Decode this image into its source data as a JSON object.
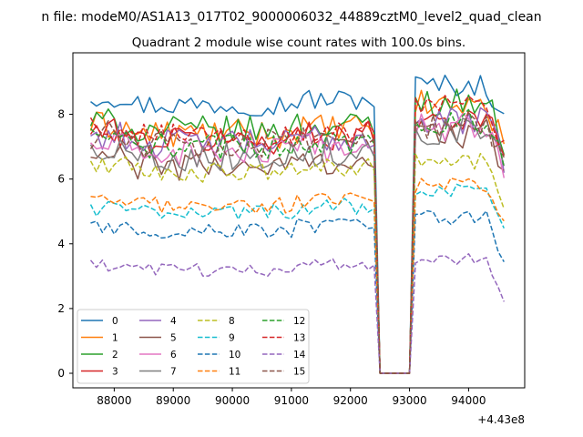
{
  "suptitle": "n file: modeM0/AS1A13_017T02_9000006032_44889cztM0_level2_quad_clean",
  "chart_data": {
    "type": "line",
    "title": "Quadrant 2 module wise count rates with 100.0s bins.",
    "xlabel": "",
    "ylabel": "",
    "x_offset_label": "+4.43e8",
    "x_range": [
      87300,
      94950
    ],
    "ylim": [
      -0.45,
      9.9
    ],
    "x_ticks": [
      88000,
      89000,
      90000,
      91000,
      92000,
      93000,
      94000
    ],
    "x_tick_labels": [
      "88000",
      "89000",
      "90000",
      "91000",
      "92000",
      "93000",
      "94000"
    ],
    "y_ticks": [
      0,
      2,
      4,
      6,
      8
    ],
    "y_tick_labels": [
      "0",
      "2",
      "4",
      "6",
      "8"
    ],
    "grid": false,
    "legend": "lower-left, 4 columns",
    "x_start": 87600,
    "x_step": 100,
    "gap_start": 92400,
    "gap_end": 93000,
    "series": [
      {
        "name": "0",
        "color": "#1f77b4",
        "dash": "solid",
        "base_first": 8.3,
        "base_second": 8.9,
        "noise": 0.35
      },
      {
        "name": "1",
        "color": "#ff7f0e",
        "dash": "solid",
        "base_first": 7.4,
        "base_second": 8.3,
        "noise": 0.45
      },
      {
        "name": "2",
        "color": "#2ca02c",
        "dash": "solid",
        "base_first": 7.5,
        "base_second": 8.4,
        "noise": 0.45
      },
      {
        "name": "3",
        "color": "#d62728",
        "dash": "solid",
        "base_first": 7.2,
        "base_second": 7.9,
        "noise": 0.45
      },
      {
        "name": "4",
        "color": "#9467bd",
        "dash": "solid",
        "base_first": 7.1,
        "base_second": 7.8,
        "noise": 0.45
      },
      {
        "name": "5",
        "color": "#8c564b",
        "dash": "solid",
        "base_first": 6.4,
        "base_second": 7.4,
        "noise": 0.45
      },
      {
        "name": "6",
        "color": "#e377c2",
        "dash": "solid",
        "base_first": 6.8,
        "base_second": 7.6,
        "noise": 0.45
      },
      {
        "name": "7",
        "color": "#7f7f7f",
        "dash": "solid",
        "base_first": 6.7,
        "base_second": 7.5,
        "noise": 0.45
      },
      {
        "name": "8",
        "color": "#bcbd22",
        "dash": "dashed",
        "base_first": 6.2,
        "base_second": 6.5,
        "noise": 0.3
      },
      {
        "name": "9",
        "color": "#17becf",
        "dash": "dashed",
        "base_first": 5.0,
        "base_second": 5.6,
        "noise": 0.25
      },
      {
        "name": "10",
        "color": "#1f77b4",
        "dash": "dashed",
        "base_first": 4.4,
        "base_second": 4.8,
        "noise": 0.25
      },
      {
        "name": "11",
        "color": "#ff7f0e",
        "dash": "dashed",
        "base_first": 5.2,
        "base_second": 5.8,
        "noise": 0.25
      },
      {
        "name": "12",
        "color": "#2ca02c",
        "dash": "dashed",
        "base_first": 7.0,
        "base_second": 7.8,
        "noise": 0.4
      },
      {
        "name": "13",
        "color": "#d62728",
        "dash": "dashed",
        "base_first": 7.3,
        "base_second": 8.2,
        "noise": 0.4
      },
      {
        "name": "14",
        "color": "#9467bd",
        "dash": "dashed",
        "base_first": 3.2,
        "base_second": 3.5,
        "noise": 0.2
      },
      {
        "name": "15",
        "color": "#8c564b",
        "dash": "dashed",
        "base_first": 7.1,
        "base_second": 7.6,
        "noise": 0.45
      }
    ]
  }
}
